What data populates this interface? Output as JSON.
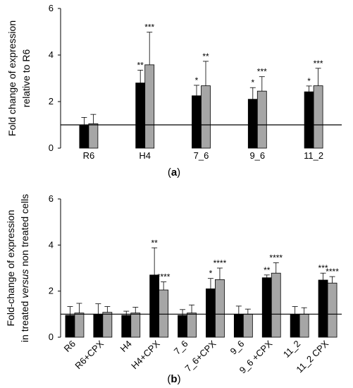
{
  "colors": {
    "series1": "#000000",
    "series2": "#a6a6a6"
  },
  "chart_data": [
    {
      "type": "bar",
      "ylabel_lines": [
        "Fold change of expression",
        "relative to R6"
      ],
      "ylim": [
        0,
        6
      ],
      "yticks": [
        0,
        2,
        4,
        6
      ],
      "reference_line": 1,
      "categories": [
        "R6",
        "H4",
        "7_6",
        "9_6",
        "11_2"
      ],
      "series": [
        {
          "values": [
            0.97,
            2.8,
            2.25,
            2.1,
            2.42
          ],
          "errors": [
            0.35,
            0.55,
            0.45,
            0.5,
            0.25
          ],
          "stars": [
            "",
            "**",
            "*",
            "*",
            "*"
          ]
        },
        {
          "values": [
            1.05,
            3.58,
            2.68,
            2.45,
            2.68
          ],
          "errors": [
            0.4,
            1.4,
            1.05,
            0.62,
            0.75
          ],
          "stars": [
            "",
            "***",
            "**",
            "***",
            "***"
          ]
        }
      ],
      "caption": {
        "open": "(",
        "letter": "a",
        "close": ")"
      }
    },
    {
      "type": "bar",
      "ylabel_lines": [
        [
          {
            "text": "Fold-change of expression",
            "italic": false
          }
        ],
        [
          {
            "text": "in treated ",
            "italic": false
          },
          {
            "text": "versus",
            "italic": true
          },
          {
            "text": " non treated cells",
            "italic": false
          }
        ]
      ],
      "ylim": [
        0,
        6
      ],
      "yticks": [
        0,
        2,
        4,
        6
      ],
      "reference_line": 1,
      "categories": [
        "R6",
        "R6+CPX",
        "H4",
        "H4+CPX",
        "7_6",
        "7_6+CPX",
        "9_6",
        "9_6 +CPX",
        "11_2",
        "11_2 CPX"
      ],
      "series": [
        {
          "values": [
            0.95,
            1.0,
            0.95,
            2.7,
            0.95,
            2.1,
            1.0,
            2.58,
            1.0,
            2.48
          ],
          "errors": [
            0.38,
            0.45,
            0.18,
            1.18,
            0.25,
            0.45,
            0.35,
            0.12,
            0.33,
            0.3
          ],
          "stars": [
            "",
            "",
            "",
            "**",
            "",
            "*",
            "",
            "**",
            "",
            "***"
          ]
        },
        {
          "values": [
            1.05,
            1.08,
            1.05,
            2.05,
            1.05,
            2.5,
            1.0,
            2.78,
            1.0,
            2.35
          ],
          "errors": [
            0.42,
            0.25,
            0.25,
            0.35,
            0.35,
            0.5,
            0.22,
            0.45,
            0.28,
            0.28
          ],
          "stars": [
            "",
            "",
            "",
            "****",
            "",
            "****",
            "",
            "****",
            "",
            "****"
          ]
        }
      ],
      "caption": {
        "open": "(",
        "letter": "b",
        "close": ")"
      }
    }
  ]
}
